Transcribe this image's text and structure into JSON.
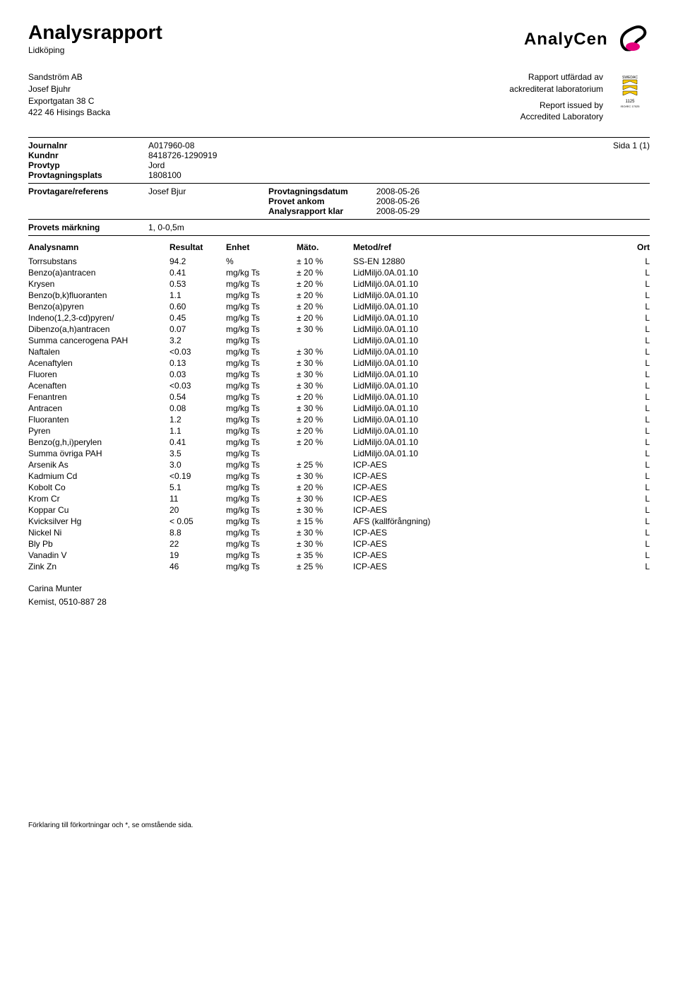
{
  "header": {
    "title": "Analysrapport",
    "subtitle": "Lidköping",
    "company_logo_text": "AnalyCen"
  },
  "address": {
    "lines": [
      "Sandström AB",
      "Josef Bjuhr",
      "Exportgatan 38 C",
      "422 46  Hisings Backa"
    ]
  },
  "issued": {
    "line1": "Rapport utfärdad av",
    "line2": "ackrediterat laboratorium",
    "line3": "Report issued by",
    "line4": "Accredited Laboratory",
    "swedac_caption1": "1125",
    "swedac_caption2": "ISO/IEC 17025"
  },
  "meta": {
    "journalnr_label": "Journalnr",
    "journalnr": "A017960-08",
    "kundnr_label": "Kundnr",
    "kundnr": "8418726-1290919",
    "provtyp_label": "Provtyp",
    "provtyp": "Jord",
    "plats_label": "Provtagningsplats",
    "plats": "1808100",
    "ref_label": "Provtagare/referens",
    "ref": "Josef Bjur",
    "page": "Sida 1 (1)",
    "dates": {
      "d1_label": "Provtagningsdatum",
      "d1_val": "2008-05-26",
      "d2_label": "Provet ankom",
      "d2_val": "2008-05-26",
      "d3_label": "Analysrapport klar",
      "d3_val": "2008-05-29"
    },
    "markning_label": "Provets märkning",
    "markning": "1, 0-0,5m"
  },
  "columns": {
    "name": "Analysnamn",
    "res": "Resultat",
    "unit": "Enhet",
    "mato": "Mäto.",
    "meth": "Metod/ref",
    "ort": "Ort"
  },
  "rows": [
    {
      "name": "Torrsubstans",
      "res": "94.2",
      "unit": "%",
      "mato": "± 10 %",
      "meth": "SS-EN 12880",
      "ort": "L"
    },
    {
      "name": "Benzo(a)antracen",
      "res": "0.41",
      "unit": "mg/kg Ts",
      "mato": "± 20 %",
      "meth": "LidMiljö.0A.01.10",
      "ort": "L"
    },
    {
      "name": "Krysen",
      "res": "0.53",
      "unit": "mg/kg Ts",
      "mato": "± 20 %",
      "meth": "LidMiljö.0A.01.10",
      "ort": "L"
    },
    {
      "name": "Benzo(b,k)fluoranten",
      "res": "1.1",
      "unit": "mg/kg Ts",
      "mato": "± 20 %",
      "meth": "LidMiljö.0A.01.10",
      "ort": "L"
    },
    {
      "name": "Benzo(a)pyren",
      "res": "0.60",
      "unit": "mg/kg Ts",
      "mato": "± 20 %",
      "meth": "LidMiljö.0A.01.10",
      "ort": "L"
    },
    {
      "name": "Indeno(1,2,3-cd)pyren/",
      "res": "0.45",
      "unit": "mg/kg Ts",
      "mato": "± 20 %",
      "meth": "LidMiljö.0A.01.10",
      "ort": "L"
    },
    {
      "name": "Dibenzo(a,h)antracen",
      "res": "0.07",
      "unit": "mg/kg Ts",
      "mato": "± 30 %",
      "meth": "LidMiljö.0A.01.10",
      "ort": "L"
    },
    {
      "name": "Summa cancerogena  PAH",
      "res": "3.2",
      "unit": "mg/kg Ts",
      "mato": "",
      "meth": "LidMiljö.0A.01.10",
      "ort": "L"
    },
    {
      "name": "Naftalen",
      "res": "<0.03",
      "unit": "mg/kg Ts",
      "mato": "± 30 %",
      "meth": "LidMiljö.0A.01.10",
      "ort": "L"
    },
    {
      "name": "Acenaftylen",
      "res": "0.13",
      "unit": "mg/kg Ts",
      "mato": "± 30 %",
      "meth": "LidMiljö.0A.01.10",
      "ort": "L"
    },
    {
      "name": "Fluoren",
      "res": "0.03",
      "unit": "mg/kg Ts",
      "mato": "± 30 %",
      "meth": "LidMiljö.0A.01.10",
      "ort": "L"
    },
    {
      "name": "Acenaften",
      "res": "<0.03",
      "unit": "mg/kg Ts",
      "mato": "± 30 %",
      "meth": "LidMiljö.0A.01.10",
      "ort": "L"
    },
    {
      "name": "Fenantren",
      "res": "0.54",
      "unit": "mg/kg Ts",
      "mato": "± 20 %",
      "meth": "LidMiljö.0A.01.10",
      "ort": "L"
    },
    {
      "name": "Antracen",
      "res": "0.08",
      "unit": "mg/kg Ts",
      "mato": "± 30 %",
      "meth": "LidMiljö.0A.01.10",
      "ort": "L"
    },
    {
      "name": "Fluoranten",
      "res": "1.2",
      "unit": "mg/kg Ts",
      "mato": "± 20 %",
      "meth": "LidMiljö.0A.01.10",
      "ort": "L"
    },
    {
      "name": "Pyren",
      "res": "1.1",
      "unit": "mg/kg Ts",
      "mato": "± 20 %",
      "meth": "LidMiljö.0A.01.10",
      "ort": "L"
    },
    {
      "name": "Benzo(g,h,i)perylen",
      "res": "0.41",
      "unit": "mg/kg Ts",
      "mato": "± 20 %",
      "meth": "LidMiljö.0A.01.10",
      "ort": "L"
    },
    {
      "name": "Summa övriga  PAH",
      "res": "3.5",
      "unit": "mg/kg Ts",
      "mato": "",
      "meth": "LidMiljö.0A.01.10",
      "ort": "L"
    },
    {
      "name": "Arsenik As",
      "res": "3.0",
      "unit": "mg/kg Ts",
      "mato": "± 25 %",
      "meth": "ICP-AES",
      "ort": "L"
    },
    {
      "name": "Kadmium Cd",
      "res": "<0.19",
      "unit": "mg/kg Ts",
      "mato": "± 30 %",
      "meth": "ICP-AES",
      "ort": "L"
    },
    {
      "name": "Kobolt Co",
      "res": "5.1",
      "unit": "mg/kg Ts",
      "mato": "± 20 %",
      "meth": "ICP-AES",
      "ort": "L"
    },
    {
      "name": "Krom Cr",
      "res": "11",
      "unit": "mg/kg Ts",
      "mato": "± 30 %",
      "meth": "ICP-AES",
      "ort": "L"
    },
    {
      "name": "Koppar Cu",
      "res": "20",
      "unit": "mg/kg Ts",
      "mato": "± 30 %",
      "meth": "ICP-AES",
      "ort": "L"
    },
    {
      "name": "Kvicksilver Hg",
      "res": "< 0.05",
      "unit": "mg/kg Ts",
      "mato": "± 15 %",
      "meth": "AFS (kallförångning)",
      "ort": "L"
    },
    {
      "name": "Nickel Ni",
      "res": "8.8",
      "unit": "mg/kg Ts",
      "mato": "± 30 %",
      "meth": "ICP-AES",
      "ort": "L"
    },
    {
      "name": "Bly Pb",
      "res": "22",
      "unit": "mg/kg Ts",
      "mato": "± 30 %",
      "meth": "ICP-AES",
      "ort": "L"
    },
    {
      "name": "Vanadin  V",
      "res": "19",
      "unit": "mg/kg Ts",
      "mato": "± 35 %",
      "meth": "ICP-AES",
      "ort": "L"
    },
    {
      "name": "Zink Zn",
      "res": "46",
      "unit": "mg/kg Ts",
      "mato": "± 25 %",
      "meth": "ICP-AES",
      "ort": "L"
    }
  ],
  "signature": {
    "name": "Carina Munter",
    "role": "Kemist, 0510-887 28"
  },
  "footer": "Förklaring till förkortningar och *, se omstående sida.",
  "colors": {
    "accent_pink": "#e6007e",
    "accent_yellow": "#ffcc00"
  }
}
